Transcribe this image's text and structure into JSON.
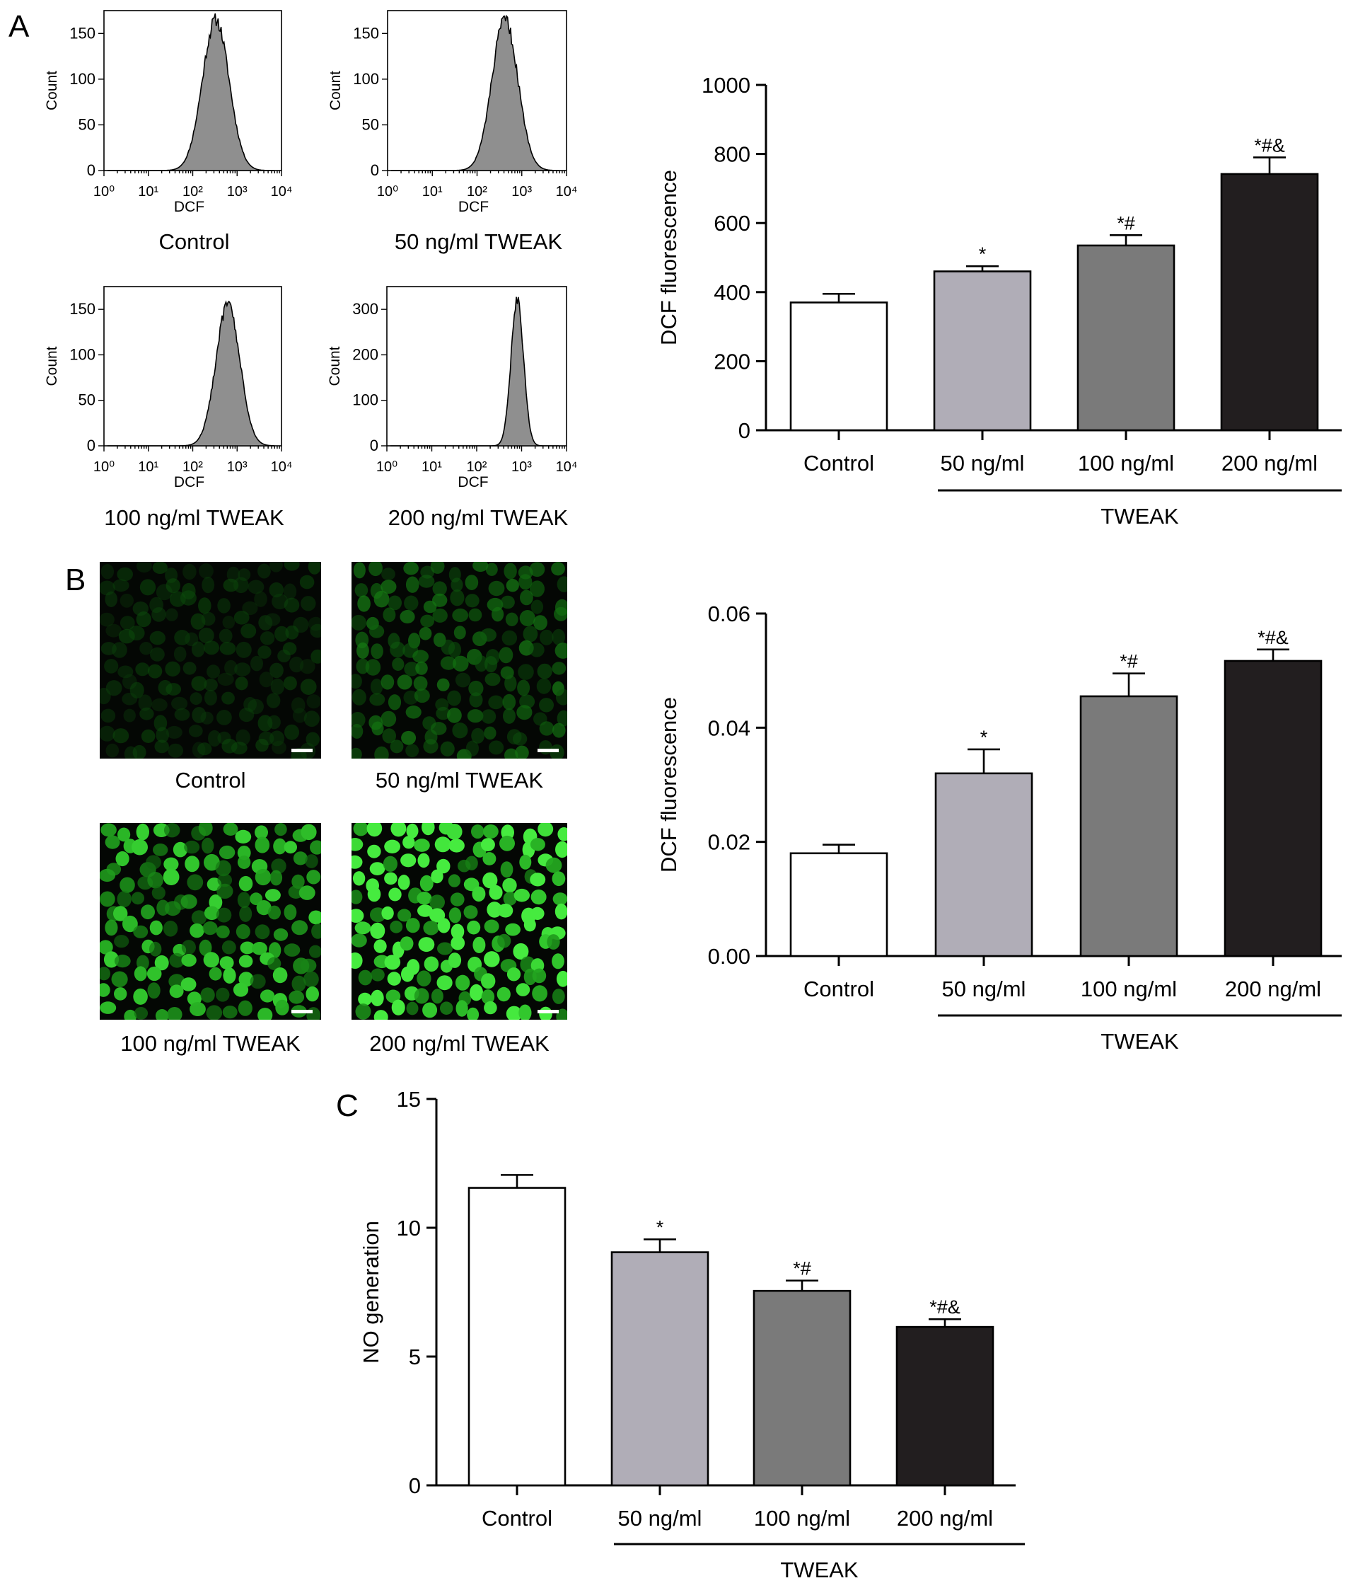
{
  "panels": {
    "a_label": "A",
    "b_label": "B",
    "c_label": "C"
  },
  "colors": {
    "control": "#ffffff",
    "dose50": "#b0adb7",
    "dose100": "#7a7a7a",
    "dose200": "#221e1f",
    "histogram_fill": "#8f8f8f",
    "fluorescence": "#2fd23f"
  },
  "fluorescence_images": [
    {
      "caption": "Control",
      "intensity": 0.15
    },
    {
      "caption": "50 ng/ml TWEAK",
      "intensity": 0.3
    },
    {
      "caption": "100 ng/ml TWEAK",
      "intensity": 0.6
    },
    {
      "caption": "200 ng/ml TWEAK",
      "intensity": 0.85
    }
  ],
  "chart_data": [
    {
      "type": "area",
      "panel": "A",
      "caption": "Control",
      "xlabel": "DCF",
      "ylabel": "Count",
      "xscale": "log",
      "xlim": [
        1,
        10000
      ],
      "xticks": [
        "10⁰",
        "10¹",
        "10²",
        "10³",
        "10⁴"
      ],
      "ylim": [
        0,
        175
      ],
      "yticks": [
        0,
        50,
        100,
        150
      ],
      "peak_x": 330,
      "peak_count": 165
    },
    {
      "type": "area",
      "panel": "A",
      "caption": "50 ng/ml TWEAK",
      "xlabel": "DCF",
      "ylabel": "Count",
      "xscale": "log",
      "xlim": [
        1,
        10000
      ],
      "xticks": [
        "10⁰",
        "10¹",
        "10²",
        "10³",
        "10⁴"
      ],
      "ylim": [
        0,
        175
      ],
      "yticks": [
        0,
        50,
        100,
        150
      ],
      "peak_x": 420,
      "peak_count": 165
    },
    {
      "type": "area",
      "panel": "A",
      "caption": "100 ng/ml TWEAK",
      "xlabel": "DCF",
      "ylabel": "Count",
      "xscale": "log",
      "xlim": [
        1,
        10000
      ],
      "xticks": [
        "10⁰",
        "10¹",
        "10²",
        "10³",
        "10⁴"
      ],
      "ylim": [
        0,
        175
      ],
      "yticks": [
        0,
        50,
        100,
        150
      ],
      "peak_x": 620,
      "peak_count": 155
    },
    {
      "type": "area",
      "panel": "A",
      "caption": "200 ng/ml TWEAK",
      "xlabel": "DCF",
      "ylabel": "Count",
      "xscale": "log",
      "xlim": [
        1,
        10000
      ],
      "xticks": [
        "10⁰",
        "10¹",
        "10²",
        "10³",
        "10⁴"
      ],
      "ylim": [
        0,
        350
      ],
      "yticks": [
        0,
        100,
        200,
        300
      ],
      "peak_x": 800,
      "peak_count": 318
    },
    {
      "type": "bar",
      "panel": "A",
      "categories": [
        "Control",
        "50 ng/ml",
        "100 ng/ml",
        "200 ng/ml"
      ],
      "values": [
        370,
        460,
        535,
        742
      ],
      "errors": [
        25,
        15,
        30,
        48
      ],
      "annotations": [
        "",
        "*",
        "*#",
        "*#&"
      ],
      "ylabel": "DCF fluorescence",
      "group_label": "TWEAK",
      "ylim": [
        0,
        1000
      ],
      "yticks": [
        "0",
        "200",
        "400",
        "600",
        "800",
        "1000"
      ]
    },
    {
      "type": "bar",
      "panel": "B",
      "categories": [
        "Control",
        "50 ng/ml",
        "100 ng/ml",
        "200 ng/ml"
      ],
      "values": [
        0.018,
        0.032,
        0.0455,
        0.0517
      ],
      "errors": [
        0.0015,
        0.0042,
        0.004,
        0.002
      ],
      "annotations": [
        "",
        "*",
        "*#",
        "*#&"
      ],
      "ylabel": "DCF fluorescence",
      "group_label": "TWEAK",
      "ylim": [
        0,
        0.06
      ],
      "yticks": [
        "0.00",
        "0.02",
        "0.04",
        "0.06"
      ]
    },
    {
      "type": "bar",
      "panel": "C",
      "categories": [
        "Control",
        "50 ng/ml",
        "100 ng/ml",
        "200 ng/ml"
      ],
      "values": [
        11.55,
        9.05,
        7.55,
        6.15
      ],
      "errors": [
        0.5,
        0.5,
        0.4,
        0.3
      ],
      "annotations": [
        "",
        "*",
        "*#",
        "*#&"
      ],
      "ylabel": "NO generation",
      "group_label": "TWEAK",
      "ylim": [
        0,
        15
      ],
      "yticks": [
        "0",
        "5",
        "10",
        "15"
      ]
    }
  ]
}
